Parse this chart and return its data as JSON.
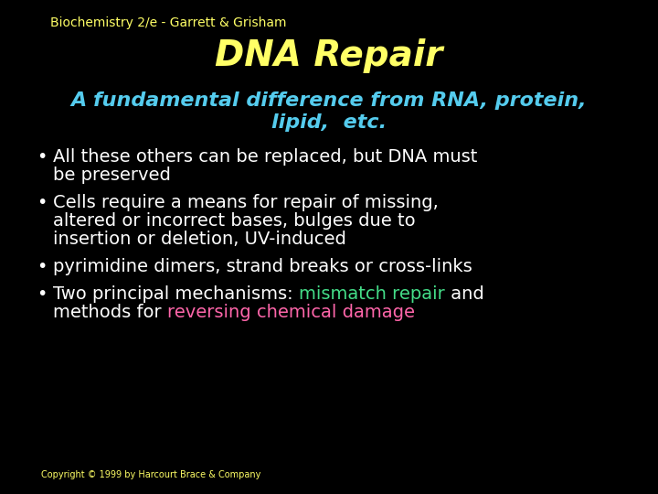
{
  "background_color": "#000000",
  "header_text": "Biochemistry 2/e - Garrett & Grisham",
  "header_color": "#ffff66",
  "header_fontsize": 10,
  "title_text": "DNA Repair",
  "title_color": "#ffff66",
  "title_fontsize": 28,
  "subtitle_line1": "A fundamental difference from RNA, protein,",
  "subtitle_line2": "lipid,  etc.",
  "subtitle_color": "#55ccee",
  "subtitle_fontsize": 16,
  "bullet_color": "#ffffff",
  "bullet_fontsize": 14,
  "copyright_text": "Copyright © 1999 by Harcourt Brace & Company",
  "copyright_color": "#ffff66",
  "copyright_fontsize": 7,
  "mismatch_color": "#44dd88",
  "reversing_color": "#ff66aa"
}
